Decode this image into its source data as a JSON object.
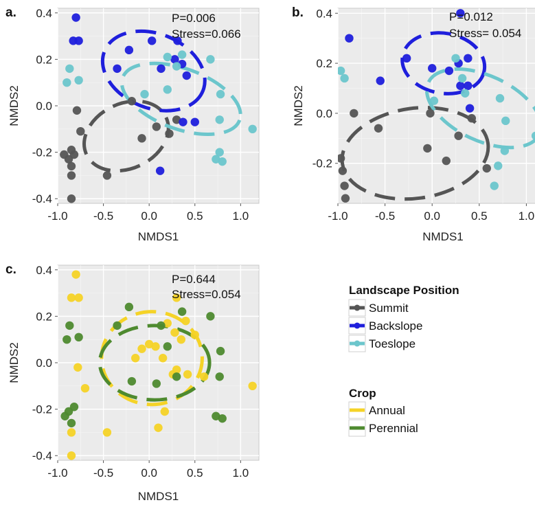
{
  "legend": {
    "landscape": {
      "title": "Landscape Position",
      "items": [
        {
          "label": "Summit",
          "color": "#555555"
        },
        {
          "label": "Backslope",
          "color": "#1f1fdc"
        },
        {
          "label": "Toeslope",
          "color": "#6cc6cc"
        }
      ]
    },
    "crop": {
      "title": "Crop",
      "items": [
        {
          "label": "Annual",
          "color": "#f5d327"
        },
        {
          "label": "Perennial",
          "color": "#4e8a2f"
        }
      ]
    }
  },
  "chart_data": [
    {
      "panel": "a.",
      "type": "scatter",
      "xlabel": "NMDS1",
      "ylabel": "NMDS2",
      "xlim": [
        -1.0,
        1.2
      ],
      "ylim": [
        -0.42,
        0.42
      ],
      "xticks": [
        -1.0,
        -0.5,
        0.0,
        0.5,
        1.0
      ],
      "xtick_labels": [
        "-1.0",
        "-0.5",
        "0.0",
        "0.5",
        "1.0"
      ],
      "yticks": [
        -0.4,
        -0.2,
        0.0,
        0.2,
        0.4
      ],
      "ytick_labels": [
        "-0.4",
        "-0.2",
        "0.0",
        "0.2",
        "0.4"
      ],
      "annotations": [
        "P=0.006",
        "Stress=0.066"
      ],
      "series": [
        {
          "name": "Summit",
          "color": "#555555",
          "x": [
            -0.93,
            -0.88,
            -0.85,
            -0.82,
            -0.79,
            -0.85,
            -0.85,
            -0.46,
            -0.08,
            0.08,
            0.3,
            0.22,
            -0.19,
            -0.75,
            -0.85
          ],
          "y": [
            -0.21,
            -0.23,
            -0.26,
            -0.21,
            -0.02,
            -0.3,
            -0.4,
            -0.3,
            -0.14,
            -0.09,
            -0.06,
            -0.12,
            0.02,
            -0.11,
            -0.19
          ]
        },
        {
          "name": "Backslope",
          "color": "#1f1fdc",
          "x": [
            -0.8,
            -0.83,
            -0.77,
            -0.22,
            -0.35,
            0.03,
            0.13,
            0.31,
            0.36,
            0.28,
            0.41,
            0.5,
            0.37,
            0.12
          ],
          "y": [
            0.38,
            0.28,
            0.28,
            0.24,
            0.16,
            0.28,
            0.16,
            0.28,
            0.18,
            0.2,
            0.13,
            -0.07,
            -0.07,
            -0.28
          ]
        },
        {
          "name": "Toeslope",
          "color": "#6cc6cc",
          "x": [
            -0.87,
            -0.9,
            -0.77,
            0.2,
            0.36,
            0.3,
            0.67,
            0.78,
            0.77,
            0.73,
            0.8,
            1.13,
            0.2,
            -0.05,
            0.77
          ],
          "y": [
            0.16,
            0.1,
            0.11,
            0.21,
            0.22,
            0.17,
            0.2,
            0.05,
            -0.06,
            -0.23,
            -0.24,
            -0.1,
            0.07,
            0.05,
            -0.2
          ]
        }
      ],
      "ellipses": [
        {
          "series": "Summit",
          "color": "#555555",
          "cx": -0.25,
          "cy": -0.13,
          "rx": 0.48,
          "ry": 0.14,
          "angle": 25
        },
        {
          "series": "Backslope",
          "color": "#1f1fdc",
          "cx": 0.05,
          "cy": 0.15,
          "rx": 0.58,
          "ry": 0.16,
          "angle": -22
        },
        {
          "series": "Toeslope",
          "color": "#6cc6cc",
          "cx": 0.35,
          "cy": 0.03,
          "rx": 0.68,
          "ry": 0.13,
          "angle": -20
        }
      ]
    },
    {
      "panel": "b.",
      "type": "scatter",
      "xlabel": "NMDS1",
      "ylabel": "NMDS2",
      "xlim": [
        -1.0,
        1.15
      ],
      "ylim": [
        -0.36,
        0.42
      ],
      "xticks": [
        -1.0,
        -0.5,
        0.0,
        0.5,
        1.0
      ],
      "xtick_labels": [
        "-1.0",
        "-0.5",
        "0.0",
        "0.5",
        "1.0"
      ],
      "yticks": [
        -0.2,
        0.0,
        0.2,
        0.4
      ],
      "ytick_labels": [
        "-0.2",
        "0.0",
        "0.2",
        "0.4"
      ],
      "annotations": [
        "P=0.012",
        "Stress= 0.054"
      ],
      "series": [
        {
          "name": "Summit",
          "color": "#555555",
          "x": [
            -0.97,
            -0.95,
            -0.93,
            -0.92,
            -0.83,
            -0.57,
            -0.05,
            -0.02,
            0.15,
            0.28,
            0.42,
            0.58
          ],
          "y": [
            -0.18,
            -0.23,
            -0.29,
            -0.34,
            0.0,
            -0.06,
            -0.14,
            0.0,
            -0.19,
            -0.09,
            -0.02,
            -0.22
          ]
        },
        {
          "name": "Backslope",
          "color": "#1f1fdc",
          "x": [
            -0.88,
            -0.55,
            -0.27,
            0.0,
            0.18,
            0.28,
            0.3,
            0.38,
            0.38,
            0.4,
            0.3
          ],
          "y": [
            0.3,
            0.13,
            0.22,
            0.18,
            0.17,
            0.2,
            0.4,
            0.22,
            0.11,
            0.02,
            0.11
          ]
        },
        {
          "name": "Toeslope",
          "color": "#6cc6cc",
          "x": [
            -0.97,
            -0.93,
            0.25,
            0.32,
            0.35,
            0.72,
            0.78,
            0.77,
            0.7,
            0.66,
            1.1,
            0.02
          ],
          "y": [
            0.17,
            0.14,
            0.22,
            0.14,
            0.08,
            0.06,
            -0.03,
            -0.15,
            -0.21,
            -0.29,
            -0.09,
            0.05
          ]
        }
      ],
      "ellipses": [
        {
          "series": "Summit",
          "color": "#555555",
          "cx": -0.18,
          "cy": -0.16,
          "rx": 0.78,
          "ry": 0.18,
          "angle": 8
        },
        {
          "series": "Backslope",
          "color": "#1f1fdc",
          "cx": 0.12,
          "cy": 0.2,
          "rx": 0.44,
          "ry": 0.12,
          "angle": -10
        },
        {
          "series": "Toeslope",
          "color": "#6cc6cc",
          "cx": 0.55,
          "cy": 0.02,
          "rx": 0.65,
          "ry": 0.13,
          "angle": -25
        }
      ]
    },
    {
      "panel": "c.",
      "type": "scatter",
      "xlabel": "NMDS1",
      "ylabel": "NMDS2",
      "xlim": [
        -1.0,
        1.2
      ],
      "ylim": [
        -0.42,
        0.42
      ],
      "xticks": [
        -1.0,
        -0.5,
        0.0,
        0.5,
        1.0
      ],
      "xtick_labels": [
        "-1.0",
        "-0.5",
        "0.0",
        "0.5",
        "1.0"
      ],
      "yticks": [
        -0.4,
        -0.2,
        0.0,
        0.2,
        0.4
      ],
      "ytick_labels": [
        "-0.4",
        "-0.2",
        "0.0",
        "0.2",
        "0.4"
      ],
      "annotations": [
        "P=0.644",
        "Stress=0.054"
      ],
      "series": [
        {
          "name": "Annual",
          "color": "#f5d327",
          "x": [
            -0.8,
            -0.85,
            -0.77,
            -0.78,
            -0.7,
            -0.85,
            -0.85,
            -0.46,
            -0.15,
            0.2,
            0.3,
            0.4,
            0.28,
            0.35,
            0.5,
            0.6,
            0.42,
            0.3,
            0.15,
            0.1,
            0.17,
            0.26,
            -0.08,
            0.0,
            0.07,
            1.13
          ],
          "y": [
            0.38,
            0.28,
            0.28,
            -0.02,
            -0.11,
            -0.3,
            -0.4,
            -0.3,
            0.02,
            0.17,
            0.28,
            0.18,
            0.13,
            0.1,
            0.12,
            -0.06,
            -0.05,
            -0.03,
            0.02,
            -0.28,
            -0.21,
            -0.05,
            0.06,
            0.08,
            0.07,
            -0.1
          ]
        },
        {
          "name": "Perennial",
          "color": "#4e8a2f",
          "x": [
            -0.87,
            -0.9,
            -0.77,
            -0.85,
            -0.88,
            -0.92,
            -0.82,
            -0.22,
            -0.35,
            0.13,
            0.36,
            0.67,
            0.78,
            0.77,
            0.73,
            0.8,
            0.2,
            0.08,
            -0.19,
            0.3
          ],
          "y": [
            0.16,
            0.1,
            0.11,
            -0.26,
            -0.21,
            -0.23,
            -0.19,
            0.24,
            0.16,
            0.16,
            0.22,
            0.2,
            0.05,
            -0.06,
            -0.23,
            -0.24,
            0.07,
            -0.09,
            -0.08,
            -0.06
          ]
        }
      ],
      "ellipses": [
        {
          "series": "Annual",
          "color": "#f5d327",
          "cx": 0.03,
          "cy": 0.02,
          "rx": 0.55,
          "ry": 0.2,
          "angle": 0
        },
        {
          "series": "Perennial",
          "color": "#4e8a2f",
          "cx": 0.06,
          "cy": 0.0,
          "rx": 0.6,
          "ry": 0.16,
          "angle": 0
        }
      ]
    }
  ]
}
